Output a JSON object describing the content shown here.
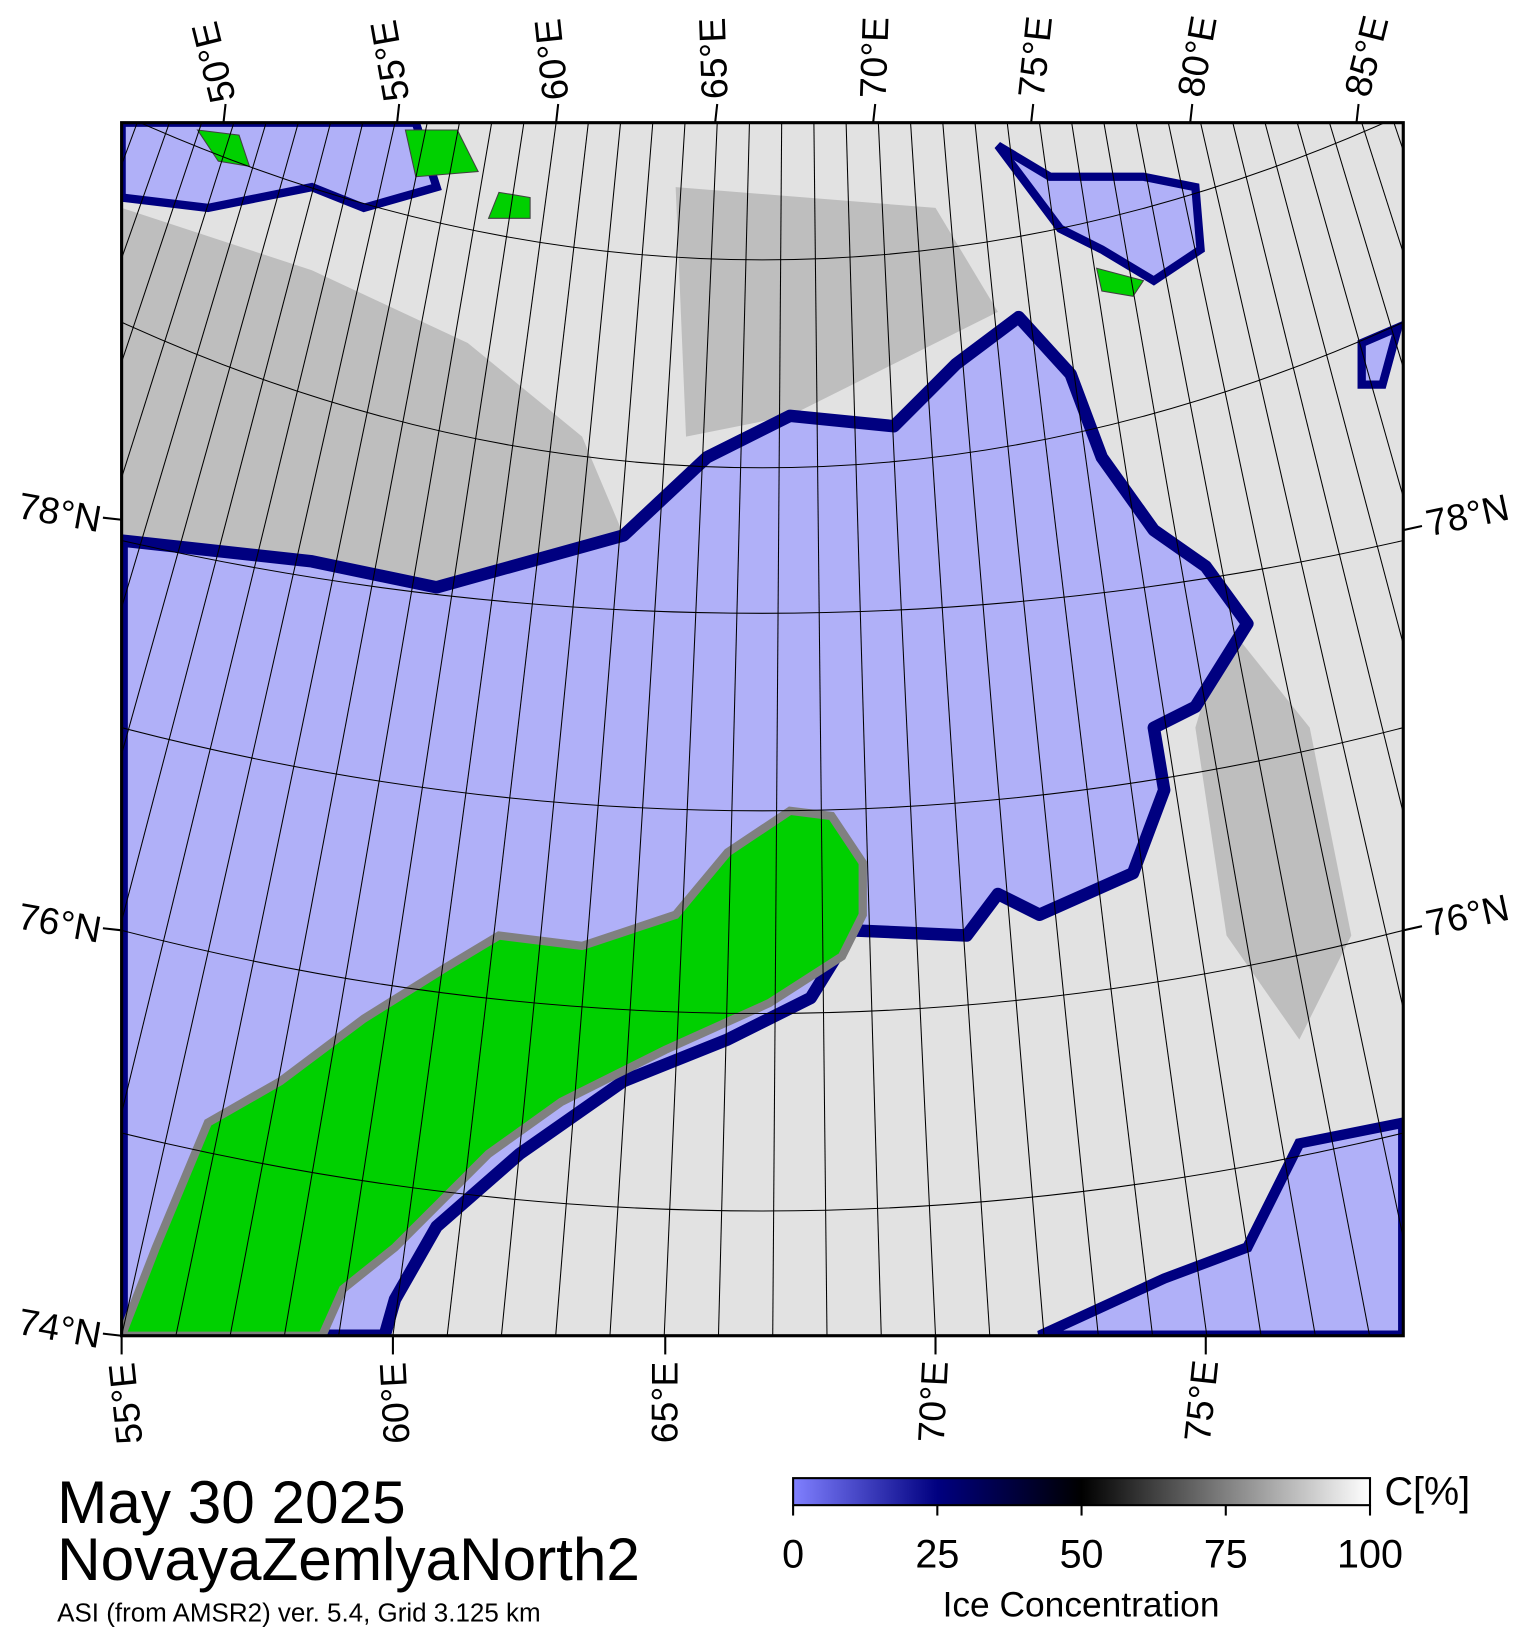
{
  "map": {
    "date": "May 30 2025",
    "region": "NovayaZemlyaNorth2",
    "source": "ASI (from AMSR2) ver. 5.4,  Grid 3.125 km",
    "top_labels": [
      "50°E",
      "55°E",
      "60°E",
      "65°E",
      "70°E",
      "75°E",
      "80°E",
      "85°E"
    ],
    "bottom_labels": [
      "55°E",
      "60°E",
      "65°E",
      "70°E",
      "75°E"
    ],
    "left_labels": [
      "78°N",
      "76°N",
      "74°N"
    ],
    "right_labels": [
      "78°N",
      "76°N"
    ]
  },
  "colorbar": {
    "title": "Ice Concentration",
    "unit": "C[%]",
    "lim": [
      0,
      100
    ],
    "ticks": [
      0,
      25,
      50,
      75,
      100
    ],
    "colors": [
      "#8080ff",
      "#000080",
      "#000000",
      "#808080",
      "#ffffff"
    ]
  }
}
